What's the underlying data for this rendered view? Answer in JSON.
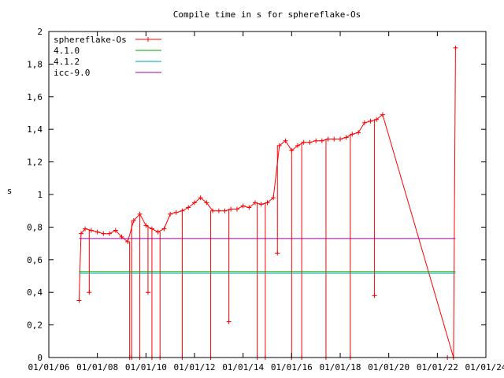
{
  "chart_data": {
    "type": "line",
    "title": "Compile time in s for sphereflake-Os",
    "xlabel": "",
    "ylabel": "s",
    "xlim": [
      "2006-01-01",
      "2024-01-01"
    ],
    "ylim": [
      0,
      2
    ],
    "yticks": [
      0,
      0.2,
      0.4,
      0.6,
      0.8,
      1,
      1.2,
      1.4,
      1.6,
      1.8,
      2
    ],
    "ytick_labels": [
      "0",
      "0,2",
      "0,4",
      "0,6",
      "0,8",
      "1",
      "1,2",
      "1,4",
      "1,6",
      "1,8",
      "2"
    ],
    "xticks": [
      "2006-01-01",
      "2008-01-01",
      "2010-01-01",
      "2012-01-01",
      "2014-01-01",
      "2016-01-01",
      "2018-01-01",
      "2020-01-01",
      "2022-01-01",
      "2024-01-01"
    ],
    "xtick_labels": [
      "01/01/06",
      "01/01/08",
      "01/01/10",
      "01/01/12",
      "01/01/14",
      "01/01/16",
      "01/01/18",
      "01/01/20",
      "01/01/22",
      "01/01/24"
    ],
    "grid": false,
    "legend_position": "top-left",
    "series": [
      {
        "name": "sphereflake-Os",
        "color": "#ff0000",
        "marker": "plus",
        "x": [
          "2007-04-01",
          "2007-05-01",
          "2007-07-01",
          "2007-10-01",
          "2008-01-01",
          "2008-04-01",
          "2008-07-01",
          "2008-10-01",
          "2009-01-01",
          "2009-04-01",
          "2009-07-01",
          "2009-10-01",
          "2010-01-01",
          "2010-04-01",
          "2010-07-01",
          "2010-10-01",
          "2011-01-01",
          "2011-04-01",
          "2011-07-01",
          "2011-10-01",
          "2012-01-01",
          "2012-04-01",
          "2012-07-01",
          "2012-10-01",
          "2013-01-01",
          "2013-04-01",
          "2013-07-01",
          "2013-10-01",
          "2014-01-01",
          "2014-04-01",
          "2014-07-01",
          "2014-10-01",
          "2015-01-01",
          "2015-04-01",
          "2015-07-01",
          "2015-10-01",
          "2016-01-01",
          "2016-04-01",
          "2016-07-01",
          "2016-10-01",
          "2017-01-01",
          "2017-04-01",
          "2017-07-01",
          "2017-10-01",
          "2018-01-01",
          "2018-04-01",
          "2018-07-01",
          "2018-10-01",
          "2019-01-01",
          "2019-04-01",
          "2019-07-01",
          "2019-10-01",
          "2022-09-01",
          "2022-10-01"
        ],
        "y": [
          0.35,
          0.76,
          0.79,
          0.78,
          0.77,
          0.76,
          0.76,
          0.78,
          0.74,
          0.71,
          0.84,
          0.88,
          0.81,
          0.79,
          0.77,
          0.79,
          0.88,
          0.89,
          0.9,
          0.92,
          0.95,
          0.98,
          0.95,
          0.9,
          0.9,
          0.9,
          0.91,
          0.91,
          0.93,
          0.92,
          0.95,
          0.94,
          0.95,
          0.98,
          1.3,
          1.33,
          1.27,
          1.3,
          1.32,
          1.32,
          1.33,
          1.33,
          1.34,
          1.34,
          1.34,
          1.35,
          1.37,
          1.38,
          1.44,
          1.45,
          1.46,
          1.49,
          0.0,
          1.9
        ],
        "drops": [
          {
            "x": "2007-09-01",
            "y": 0.4
          },
          {
            "x": "2009-05-01",
            "y": 0.0
          },
          {
            "x": "2009-06-01",
            "y": 0.0
          },
          {
            "x": "2009-10-01",
            "y": 0.0
          },
          {
            "x": "2010-02-01",
            "y": 0.4
          },
          {
            "x": "2010-04-01",
            "y": 0.0
          },
          {
            "x": "2010-08-01",
            "y": 0.0
          },
          {
            "x": "2011-07-01",
            "y": 0.0
          },
          {
            "x": "2012-09-01",
            "y": 0.0
          },
          {
            "x": "2013-06-01",
            "y": 0.22
          },
          {
            "x": "2014-08-01",
            "y": 0.0
          },
          {
            "x": "2014-12-01",
            "y": 0.0
          },
          {
            "x": "2015-06-01",
            "y": 0.64
          },
          {
            "x": "2016-01-01",
            "y": 0.0
          },
          {
            "x": "2016-06-01",
            "y": 0.0
          },
          {
            "x": "2017-06-01",
            "y": 0.0
          },
          {
            "x": "2018-06-01",
            "y": 0.0
          },
          {
            "x": "2019-06-01",
            "y": 0.38
          },
          {
            "x": "2022-06-01",
            "y": 0.0
          }
        ]
      },
      {
        "name": "4.1.0",
        "color": "#00a000",
        "x": [
          "2007-04-01",
          "2022-10-01"
        ],
        "y": [
          0.527,
          0.527
        ]
      },
      {
        "name": "4.1.2",
        "color": "#00a0a0",
        "x": [
          "2007-04-01",
          "2022-10-01"
        ],
        "y": [
          0.517,
          0.517
        ]
      },
      {
        "name": "icc-9.0",
        "color": "#a000a0",
        "x": [
          "2007-04-01",
          "2022-10-01"
        ],
        "y": [
          0.73,
          0.73
        ]
      }
    ]
  }
}
